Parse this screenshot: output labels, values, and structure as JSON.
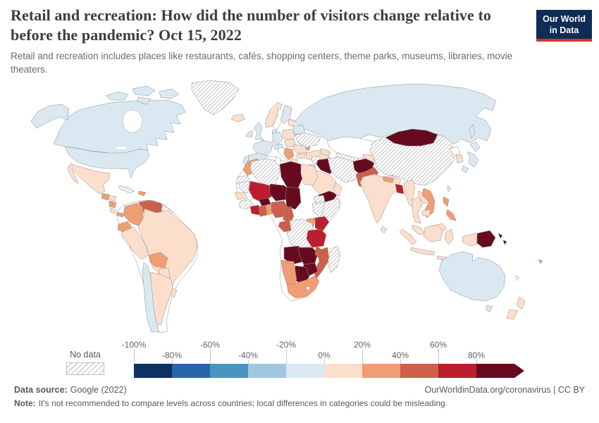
{
  "header": {
    "title": "Retail and recreation: How did the number of visitors change relative to before the pandemic? Oct 15, 2022",
    "subtitle": "Retail and recreation includes places like restaurants, cafés, shopping centers, theme parks, museums, libraries, movie theaters.",
    "logo_line1": "Our World",
    "logo_line2": "in Data"
  },
  "legend": {
    "no_data_label": "No data",
    "bins": [
      {
        "label": "-100%",
        "color": "#0d3161"
      },
      {
        "label": "-80%",
        "color": "#2766ab"
      },
      {
        "label": "-60%",
        "color": "#4a94c0"
      },
      {
        "label": "-40%",
        "color": "#9fc7e0"
      },
      {
        "label": "-20%",
        "color": "#dae8f1"
      },
      {
        "label": "0%",
        "color": "#fbdecb"
      },
      {
        "label": "20%",
        "color": "#ef9d72"
      },
      {
        "label": "40%",
        "color": "#cd604a"
      },
      {
        "label": "60%",
        "color": "#bb1f2d"
      },
      {
        "label": "80%",
        "color": "#670a20"
      }
    ]
  },
  "footer": {
    "data_source_label": "Data source:",
    "data_source_value": "Google (2022)",
    "right_text": "OurWorldinData.org/coronavirus | CC BY",
    "note_label": "Note:",
    "note_value": "It's not recommended to compare levels across countries; local differences in categories could be misleading."
  },
  "map": {
    "palette": {
      "b1": "#0d3161",
      "b2": "#2766ab",
      "b3": "#4a94c0",
      "b4": "#9fc7e0",
      "b5": "#dae8f1",
      "b6": "#fbdecb",
      "b7": "#ef9d72",
      "b8": "#cd604a",
      "b9": "#bb1f2d",
      "b10": "#670a20",
      "near_zero": "#ffffff",
      "no_data": "hatch"
    }
  },
  "chart_data": {
    "type": "choropleth",
    "title": "Retail and recreation: How did the number of visitors change relative to before the pandemic?",
    "date": "Oct 15, 2022",
    "unit": "% change in visitors relative to pre-pandemic baseline",
    "legend_note": "diverging blue-red scale, hatched = no data, arrow on final bin",
    "bucket_ranges": {
      "b1": "-100% to -80%",
      "b2": "-80% to -60%",
      "b3": "-60% to -40%",
      "b4": "-40% to -20%",
      "b5": "-20% to 0%",
      "near_zero": "about 0%",
      "b6": "0% to 20%",
      "b7": "20% to 40%",
      "b8": "40% to 60%",
      "b9": "60% to 80%",
      "b10": "more than 80%",
      "no_data": "No data"
    },
    "countries": {
      "canada": "b5",
      "usa": "b5",
      "mexico": "b6",
      "guatemala": "b7",
      "honduras": "b6",
      "nicaragua": "b7",
      "costa_rica": "b6",
      "panama": "b7",
      "cuba": "no_data",
      "dominican_republic": "b7",
      "colombia": "b7",
      "venezuela": "b8",
      "guyana_suriname": "no_data",
      "ecuador": "b7",
      "peru": "b6",
      "brazil": "b6",
      "bolivia": "b7",
      "paraguay": "b6",
      "uruguay": "b6",
      "chile": "b5",
      "argentina": "b6",
      "greenland": "no_data",
      "iceland": "b6",
      "norway": "b6",
      "sweden": "near_zero",
      "finland": "b5",
      "denmark": "b5",
      "uk": "b5",
      "ireland": "b5",
      "france": "b5",
      "spain": "b5",
      "portugal": "b5",
      "germany": "b5",
      "austria_switzerland": "b5",
      "italy": "near_zero",
      "poland": "b6",
      "czechia_hungary": "b6",
      "serbia_croatia": "b7",
      "greece": "b6",
      "romania": "b6",
      "bulgaria": "b6",
      "moldova": "b7",
      "ukraine": "no_data",
      "belarus": "b5",
      "baltics": "b6",
      "turkey": "b6",
      "russia": "b5",
      "sakhalin": "b5",
      "kazakhstan": "near_zero",
      "uzbekistan": "no_data",
      "turkmenistan": "no_data",
      "kyrgyzstan": "b6",
      "tajikistan": "no_data",
      "georgia_armenia": "b6",
      "syria": "no_data",
      "iraq": "b10",
      "iran": "no_data",
      "afghanistan": "b10",
      "pakistan": "b8",
      "saudi_arabia": "b6",
      "yemen": "b10",
      "oman": "b6",
      "jordan_israel": "b6",
      "india": "b6",
      "nepal": "b7",
      "bangladesh": "b9",
      "sri_lanka": "b5",
      "myanmar": "b6",
      "thailand": "b6",
      "laos": "b6",
      "vietnam": "b7",
      "cambodia": "b6",
      "malaysia": "b6",
      "malaysia_east": "b6",
      "china": "no_data",
      "mongolia": "b10",
      "north_korea": "near_zero",
      "south_korea": "b6",
      "japan": "b5",
      "taiwan": "b5",
      "philippines": "b7",
      "indonesia": "b6",
      "west_papua": "b6",
      "papua_new_guinea": "b10",
      "solomon_islands": "b10",
      "fiji": "b7",
      "australia": "b5",
      "tasmania": "b5",
      "new_zealand": "b6",
      "new_caledonia": "near_zero",
      "morocco": "b7",
      "western_sahara": "no_data",
      "algeria": "no_data",
      "tunisia": "near_zero",
      "libya": "b10",
      "egypt": "b6",
      "mauritania": "no_data",
      "senegal": "b6",
      "mali": "b9",
      "burkina_faso": "b10",
      "niger": "b10",
      "chad": "b10",
      "guinea": "no_data",
      "ivory_coast": "b9",
      "ghana": "b8",
      "benin_togo": "b7",
      "nigeria": "b8",
      "cameroon": "b8",
      "ethiopia": "no_data",
      "somalia": "no_data",
      "eritrea": "no_data",
      "uganda": "b7",
      "kenya": "b9",
      "rwanda_burundi": "b7",
      "drc": "no_data",
      "congo_gabon": "b8",
      "tanzania": "b9",
      "angola": "b10",
      "zambia": "b10",
      "malawi": "b8",
      "mozambique": "b8",
      "zimbabwe": "b10",
      "botswana": "b10",
      "namibia": "b7",
      "south_africa": "b7",
      "madagascar": "no_data"
    }
  }
}
